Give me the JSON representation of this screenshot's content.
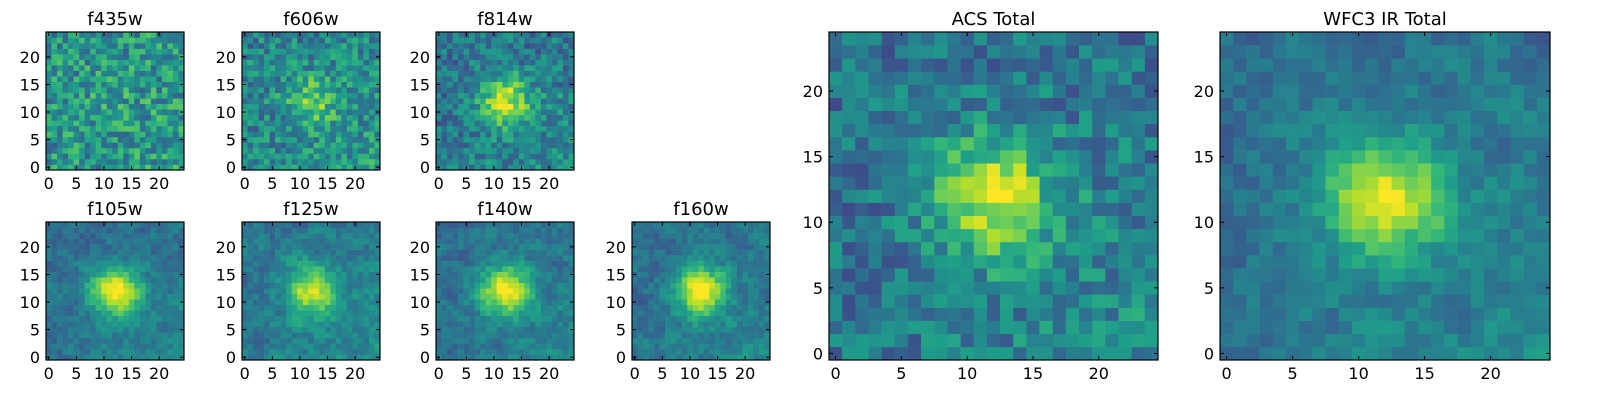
{
  "figure": {
    "background": "#ffffff",
    "colormap": "viridis"
  },
  "chart_data": [
    {
      "type": "heatmap",
      "title": "f435w",
      "xticks": [
        0,
        5,
        10,
        15,
        20
      ],
      "yticks": [
        0,
        5,
        10,
        15,
        20
      ],
      "xlim": [
        0,
        25
      ],
      "ylim": [
        0,
        25
      ],
      "grid_size": 25,
      "source_peak": [
        12,
        12
      ],
      "peak_intensity": 0.05
    },
    {
      "type": "heatmap",
      "title": "f606w",
      "xticks": [
        0,
        5,
        10,
        15,
        20
      ],
      "yticks": [
        0,
        5,
        10,
        15,
        20
      ],
      "xlim": [
        0,
        25
      ],
      "ylim": [
        0,
        25
      ],
      "grid_size": 25,
      "source_peak": [
        12,
        12
      ],
      "peak_intensity": 0.3
    },
    {
      "type": "heatmap",
      "title": "f814w",
      "xticks": [
        0,
        5,
        10,
        15,
        20
      ],
      "yticks": [
        0,
        5,
        10,
        15,
        20
      ],
      "xlim": [
        0,
        25
      ],
      "ylim": [
        0,
        25
      ],
      "grid_size": 25,
      "source_peak": [
        12,
        12
      ],
      "peak_intensity": 0.5
    },
    {
      "type": "heatmap",
      "title": "f105w",
      "xticks": [
        0,
        5,
        10,
        15,
        20
      ],
      "yticks": [
        0,
        5,
        10,
        15,
        20
      ],
      "xlim": [
        0,
        25
      ],
      "ylim": [
        0,
        25
      ],
      "grid_size": 25,
      "source_peak": [
        12,
        12
      ],
      "peak_intensity": 0.6
    },
    {
      "type": "heatmap",
      "title": "f125w",
      "xticks": [
        0,
        5,
        10,
        15,
        20
      ],
      "yticks": [
        0,
        5,
        10,
        15,
        20
      ],
      "xlim": [
        0,
        25
      ],
      "ylim": [
        0,
        25
      ],
      "grid_size": 25,
      "source_peak": [
        12,
        12
      ],
      "peak_intensity": 0.5
    },
    {
      "type": "heatmap",
      "title": "f140w",
      "xticks": [
        0,
        5,
        10,
        15,
        20
      ],
      "yticks": [
        0,
        5,
        10,
        15,
        20
      ],
      "xlim": [
        0,
        25
      ],
      "ylim": [
        0,
        25
      ],
      "grid_size": 25,
      "source_peak": [
        12,
        12
      ],
      "peak_intensity": 0.6
    },
    {
      "type": "heatmap",
      "title": "f160w",
      "xticks": [
        0,
        5,
        10,
        15,
        20
      ],
      "yticks": [
        0,
        5,
        10,
        15,
        20
      ],
      "xlim": [
        0,
        25
      ],
      "ylim": [
        0,
        25
      ],
      "grid_size": 25,
      "source_peak": [
        12,
        12
      ],
      "peak_intensity": 0.6
    },
    {
      "type": "heatmap",
      "title": "ACS Total",
      "xticks": [
        0,
        5,
        10,
        15,
        20
      ],
      "yticks": [
        0,
        5,
        10,
        15,
        20
      ],
      "xlim": [
        0,
        25
      ],
      "ylim": [
        0,
        25
      ],
      "grid_size": 25,
      "source_peak": [
        12,
        12
      ],
      "peak_intensity": 0.55
    },
    {
      "type": "heatmap",
      "title": "WFC3 IR Total",
      "xticks": [
        0,
        5,
        10,
        15,
        20
      ],
      "yticks": [
        0,
        5,
        10,
        15,
        20
      ],
      "xlim": [
        0,
        25
      ],
      "ylim": [
        0,
        25
      ],
      "grid_size": 25,
      "source_peak": [
        12,
        12
      ],
      "peak_intensity": 0.6
    }
  ]
}
